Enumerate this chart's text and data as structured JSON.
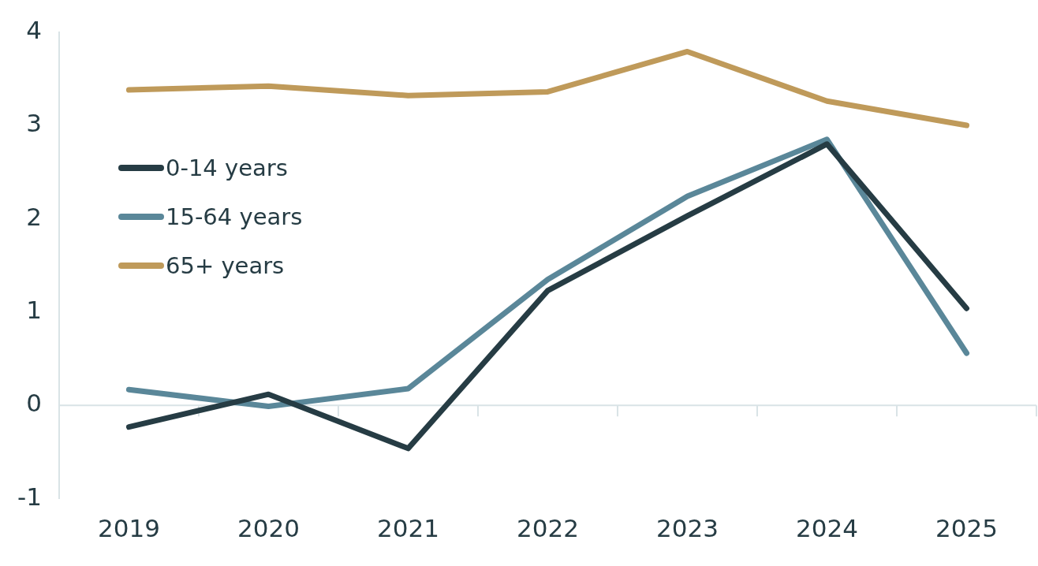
{
  "chart_data": {
    "type": "line",
    "categories": [
      "2019",
      "2020",
      "2021",
      "2022",
      "2023",
      "2024",
      "2025"
    ],
    "series": [
      {
        "name": "0-14 years",
        "color": "#263c44",
        "values": [
          -0.23,
          0.12,
          -0.46,
          1.23,
          2.03,
          2.8,
          1.04
        ]
      },
      {
        "name": "15-64 years",
        "color": "#5a8799",
        "values": [
          0.17,
          -0.01,
          0.18,
          1.35,
          2.24,
          2.85,
          0.56
        ]
      },
      {
        "name": "65+ years",
        "color": "#bf9a5a",
        "values": [
          3.38,
          3.42,
          3.32,
          3.36,
          3.79,
          3.26,
          3.0
        ]
      }
    ],
    "ref_lines": [
      {
        "axis": "y",
        "value": 0,
        "color": "#d9e3e6"
      }
    ],
    "ylim": [
      -1,
      4
    ],
    "yticks": [
      -1,
      0,
      1,
      2,
      3,
      4
    ],
    "grid": false,
    "legend": "top left",
    "marker": "none",
    "line_style": "solid"
  }
}
